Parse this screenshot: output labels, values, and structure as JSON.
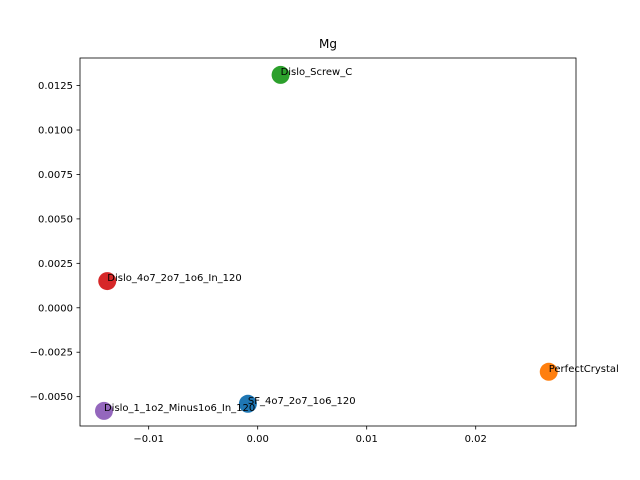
{
  "chart_data": {
    "type": "scatter",
    "title": "Mg",
    "xlabel": "",
    "ylabel": "",
    "xlim": [
      -0.0163,
      0.0292
    ],
    "ylim": [
      -0.00665,
      0.01405
    ],
    "grid": false,
    "x_ticks": [
      -0.01,
      0.0,
      0.01,
      0.02
    ],
    "x_tick_labels": [
      "−0.01",
      "0.00",
      "0.01",
      "0.02"
    ],
    "y_ticks": [
      -0.005,
      -0.0025,
      0.0,
      0.0025,
      0.005,
      0.0075,
      0.01,
      0.0125
    ],
    "y_tick_labels": [
      "−0.0050",
      "−0.0025",
      "0.0000",
      "0.0025",
      "0.0050",
      "0.0075",
      "0.0100",
      "0.0125"
    ],
    "points": [
      {
        "label": "SF_4o7_2o7_1o6_120",
        "x": -0.0009,
        "y": -0.0054,
        "color": "#1f77b4"
      },
      {
        "label": "PerfectCrystal",
        "x": 0.0267,
        "y": -0.0036,
        "color": "#ff7f0e"
      },
      {
        "label": "Dislo_Screw_C",
        "x": 0.0021,
        "y": 0.0131,
        "color": "#2ca02c"
      },
      {
        "label": "Dislo_4o7_2o7_1o6_In_120",
        "x": -0.0138,
        "y": 0.0015,
        "color": "#d62728"
      },
      {
        "label": "Dislo_1_1o2_Minus1o6_In_120",
        "x": -0.0141,
        "y": -0.0058,
        "color": "#9467bd"
      }
    ]
  }
}
